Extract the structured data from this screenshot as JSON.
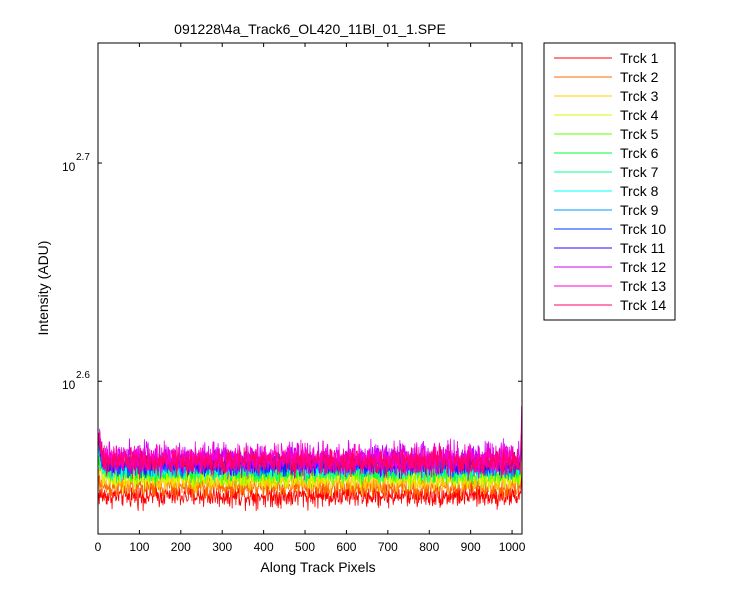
{
  "chart_data": {
    "type": "line",
    "title": "091228\\4a_Track6_OL420_11Bl_01_1.SPE",
    "xlabel": "Along Track Pixels",
    "ylabel": "Intensity (ADU)",
    "xlim": [
      0,
      1024
    ],
    "ylim_log10": [
      2.53,
      2.755
    ],
    "y_scale": "log",
    "x_ticks": [
      0,
      100,
      200,
      300,
      400,
      500,
      600,
      700,
      800,
      900,
      1000
    ],
    "x_tick_labels": [
      "0",
      "100",
      "200",
      "300",
      "400",
      "500",
      "600",
      "700",
      "800",
      "900",
      "1000"
    ],
    "y_ticks_log10": [
      2.6,
      2.7
    ],
    "y_tick_base": "10",
    "y_tick_exponents": [
      "2.6",
      "2.7"
    ],
    "grid": false,
    "legend_position": "outside-right",
    "x": "pixel index 1-1024",
    "series": [
      {
        "name": "Trck 1",
        "color": "#ff0000",
        "mean_log10": 2.5475,
        "noise_log10": 0.0026,
        "edge_start_log10": 2.548,
        "edge_end_log10": 2.565
      },
      {
        "name": "Trck 2",
        "color": "#ff6a00",
        "mean_log10": 2.5515,
        "noise_log10": 0.0025,
        "edge_start_log10": 2.553,
        "edge_end_log10": 2.569
      },
      {
        "name": "Trck 3",
        "color": "#ffcc00",
        "mean_log10": 2.5545,
        "noise_log10": 0.0024,
        "edge_start_log10": 2.56,
        "edge_end_log10": 2.573
      },
      {
        "name": "Trck 4",
        "color": "#ccff00",
        "mean_log10": 2.5565,
        "noise_log10": 0.0024,
        "edge_start_log10": 2.563,
        "edge_end_log10": 2.575
      },
      {
        "name": "Trck 5",
        "color": "#66ff00",
        "mean_log10": 2.558,
        "noise_log10": 0.0024,
        "edge_start_log10": 2.566,
        "edge_end_log10": 2.577
      },
      {
        "name": "Trck 6",
        "color": "#00ff33",
        "mean_log10": 2.559,
        "noise_log10": 0.0024,
        "edge_start_log10": 2.568,
        "edge_end_log10": 2.578
      },
      {
        "name": "Trck 7",
        "color": "#00ff99",
        "mean_log10": 2.5598,
        "noise_log10": 0.0024,
        "edge_start_log10": 2.569,
        "edge_end_log10": 2.579
      },
      {
        "name": "Trck 8",
        "color": "#00ffff",
        "mean_log10": 2.5605,
        "noise_log10": 0.0024,
        "edge_start_log10": 2.57,
        "edge_end_log10": 2.58
      },
      {
        "name": "Trck 9",
        "color": "#0099ff",
        "mean_log10": 2.5612,
        "noise_log10": 0.0024,
        "edge_start_log10": 2.571,
        "edge_end_log10": 2.581
      },
      {
        "name": "Trck 10",
        "color": "#0033ff",
        "mean_log10": 2.5618,
        "noise_log10": 0.0024,
        "edge_start_log10": 2.572,
        "edge_end_log10": 2.582
      },
      {
        "name": "Trck 11",
        "color": "#3300ff",
        "mean_log10": 2.5625,
        "noise_log10": 0.0025,
        "edge_start_log10": 2.573,
        "edge_end_log10": 2.583
      },
      {
        "name": "Trck 12",
        "color": "#cc00ff",
        "mean_log10": 2.5645,
        "noise_log10": 0.0035,
        "edge_start_log10": 2.576,
        "edge_end_log10": 2.586
      },
      {
        "name": "Trck 13",
        "color": "#ff00cc",
        "mean_log10": 2.5645,
        "noise_log10": 0.0036,
        "edge_start_log10": 2.578,
        "edge_end_log10": 2.59
      },
      {
        "name": "Trck 14",
        "color": "#ff0066",
        "mean_log10": 2.563,
        "noise_log10": 0.003,
        "edge_start_log10": 2.574,
        "edge_end_log10": 2.585
      }
    ]
  }
}
